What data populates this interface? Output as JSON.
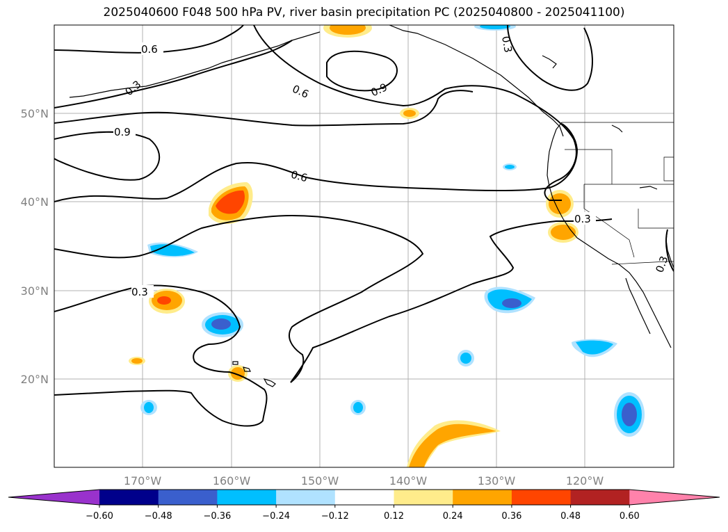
{
  "title": "2025040600 F048 500 hPa PV, river basin precipitation PC (2025040800 - 2025041100)",
  "map": {
    "lat_labels": [
      "50°N",
      "40°N",
      "30°N",
      "20°N"
    ],
    "lon_labels": [
      "170°W",
      "160°W",
      "150°W",
      "140°W",
      "130°W",
      "120°W"
    ],
    "gridlines": true,
    "pv_contour_levels": [
      "0.3",
      "0.6",
      "0.9"
    ],
    "contour_labels": [
      "0.6",
      "0.3",
      "0.6",
      "0.9",
      "0.3",
      "0.9",
      "0.6",
      "0.3",
      "0.3",
      "0.3"
    ]
  },
  "colorbar": {
    "ticks": [
      "−0.60",
      "−0.48",
      "−0.36",
      "−0.24",
      "−0.12",
      "0.12",
      "0.24",
      "0.36",
      "0.48",
      "0.60"
    ],
    "colors": [
      "#9932cc",
      "#00008b",
      "#3a5fcd",
      "#00bfff",
      "#b0e2ff",
      "#ffffff",
      "#ffec8b",
      "#ffa500",
      "#ff4500",
      "#b22222",
      "#ff82ab"
    ]
  }
}
